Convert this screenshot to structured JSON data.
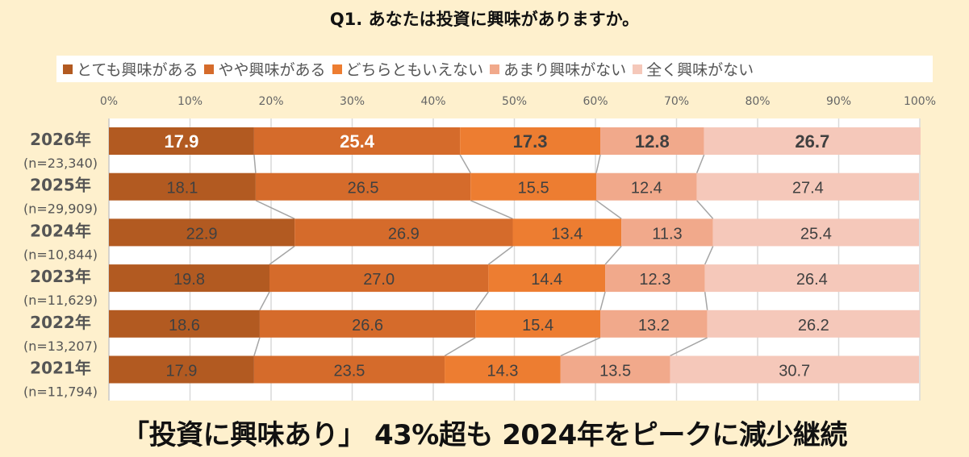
{
  "title": "Q1. あなたは投資に興味がありますか。",
  "headline": "「投資に興味あり」 43%超も 2024年をピークに減少継続",
  "colors": {
    "background": "#FEF0CD",
    "very_interested": "#B25A21",
    "somewhat_interested": "#D56B2B",
    "neutral": "#ED7D31",
    "not_very_interested": "#F1A98B",
    "not_interested": "#F5C8BA",
    "gridline": "#D9D9D9",
    "connector": "#A5A5A5"
  },
  "chart_data": {
    "type": "bar",
    "orientation": "horizontal-stacked-100",
    "title": "Q1. あなたは投資に興味がありますか。",
    "xlabel": "",
    "ylabel": "",
    "xlim": [
      0,
      100
    ],
    "x_ticks": [
      "0%",
      "10%",
      "20%",
      "30%",
      "40%",
      "50%",
      "60%",
      "70%",
      "80%",
      "90%",
      "100%"
    ],
    "grid": true,
    "legend_position": "top",
    "categories": [
      {
        "year": "2026年",
        "n": "(n=23,340)"
      },
      {
        "year": "2025年",
        "n": "(n=29,909)"
      },
      {
        "year": "2024年",
        "n": "(n=10,844)"
      },
      {
        "year": "2023年",
        "n": "(n=11,629)"
      },
      {
        "year": "2022年",
        "n": "(n=13,207)"
      },
      {
        "year": "2021年",
        "n": "(n=11,794)"
      }
    ],
    "series": [
      {
        "name": "とても興味がある",
        "color_key": "very_interested",
        "values": [
          17.9,
          18.1,
          22.9,
          19.8,
          18.6,
          17.9
        ],
        "labels": [
          "17.9",
          "18.1",
          "22.9",
          "19.8",
          "18.6",
          "17.9"
        ]
      },
      {
        "name": "やや興味がある",
        "color_key": "somewhat_interested",
        "values": [
          25.4,
          26.5,
          26.9,
          27.0,
          26.6,
          23.5
        ],
        "labels": [
          "25.4",
          "26.5",
          "26.9",
          "27.0",
          "26.6",
          "23.5"
        ]
      },
      {
        "name": "どちらともいえない",
        "color_key": "neutral",
        "values": [
          17.3,
          15.5,
          13.4,
          14.4,
          15.4,
          14.3
        ],
        "labels": [
          "17.3",
          "15.5",
          "13.4",
          "14.4",
          "15.4",
          "14.3"
        ]
      },
      {
        "name": "あまり興味がない",
        "color_key": "not_very_interested",
        "values": [
          12.8,
          12.4,
          11.3,
          12.3,
          13.2,
          13.5
        ],
        "labels": [
          "12.8",
          "12.4",
          "11.3",
          "12.3",
          "13.2",
          "13.5"
        ]
      },
      {
        "name": "全く興味がない",
        "color_key": "not_interested",
        "values": [
          26.7,
          27.4,
          25.4,
          26.4,
          26.2,
          30.7
        ],
        "labels": [
          "26.7",
          "27.4",
          "25.4",
          "26.4",
          "26.2",
          "30.7"
        ]
      }
    ],
    "highlight_category_index": 0
  }
}
